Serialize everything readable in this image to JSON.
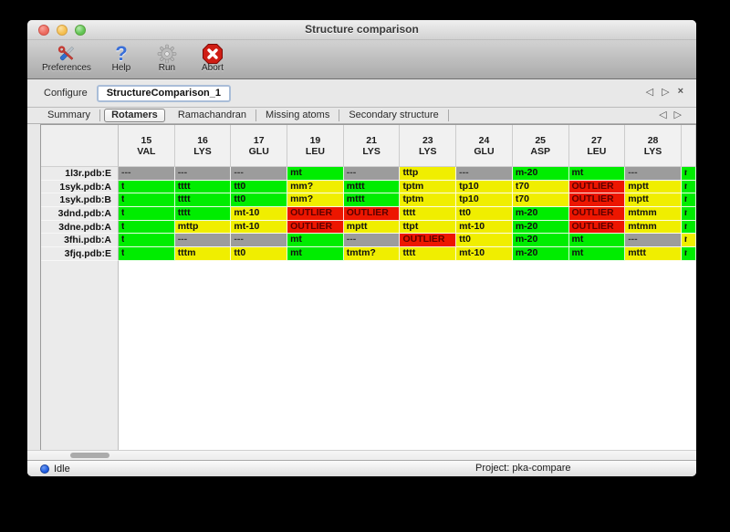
{
  "window": {
    "title": "Structure comparison"
  },
  "toolbar": {
    "items": [
      {
        "label": "Preferences",
        "icon": "tools-icon"
      },
      {
        "label": "Help",
        "icon": "help-icon"
      },
      {
        "label": "Run",
        "icon": "gear-icon"
      },
      {
        "label": "Abort",
        "icon": "abort-icon"
      }
    ]
  },
  "configure": {
    "label": "Configure",
    "value": "StructureComparison_1",
    "nav": {
      "prev": "◁",
      "next": "▷",
      "close": "×"
    }
  },
  "tabs": {
    "items": [
      "Summary",
      "Rotamers",
      "Ramachandran",
      "Missing atoms",
      "Secondary structure"
    ],
    "active": "Rotamers",
    "nav": {
      "prev": "◁",
      "next": "▷"
    }
  },
  "colors": {
    "green": "#00ed00",
    "yellow": "#f0ee00",
    "red": "#ed1600",
    "gray": "#9c9c9c"
  },
  "table": {
    "columns": [
      {
        "num": "15",
        "res": "VAL"
      },
      {
        "num": "16",
        "res": "LYS"
      },
      {
        "num": "17",
        "res": "GLU"
      },
      {
        "num": "19",
        "res": "LEU"
      },
      {
        "num": "21",
        "res": "LYS"
      },
      {
        "num": "23",
        "res": "LYS"
      },
      {
        "num": "24",
        "res": "GLU"
      },
      {
        "num": "25",
        "res": "ASP"
      },
      {
        "num": "27",
        "res": "LEU"
      },
      {
        "num": "28",
        "res": "LYS"
      }
    ],
    "rows": [
      {
        "label": "1l3r.pdb:E",
        "cells": [
          {
            "text": "---",
            "status": "gray"
          },
          {
            "text": "---",
            "status": "gray"
          },
          {
            "text": "---",
            "status": "gray"
          },
          {
            "text": "mt",
            "status": "green"
          },
          {
            "text": "---",
            "status": "gray"
          },
          {
            "text": "tttp",
            "status": "yellow"
          },
          {
            "text": "---",
            "status": "gray"
          },
          {
            "text": "m-20",
            "status": "green"
          },
          {
            "text": "mt",
            "status": "green"
          },
          {
            "text": "---",
            "status": "gray"
          }
        ],
        "overflow": {
          "text": "m",
          "status": "green",
          "clipped": true
        }
      },
      {
        "label": "1syk.pdb:A",
        "cells": [
          {
            "text": "t",
            "status": "green",
            "clipped": true
          },
          {
            "text": "tttt",
            "status": "green"
          },
          {
            "text": "tt0",
            "status": "green"
          },
          {
            "text": "mm?",
            "status": "yellow"
          },
          {
            "text": "mttt",
            "status": "green"
          },
          {
            "text": "tptm",
            "status": "yellow"
          },
          {
            "text": "tp10",
            "status": "yellow"
          },
          {
            "text": "t70",
            "status": "yellow"
          },
          {
            "text": "OUTLIER",
            "status": "red"
          },
          {
            "text": "mptt",
            "status": "yellow"
          }
        ],
        "overflow": {
          "text": "m",
          "status": "green",
          "clipped": true
        }
      },
      {
        "label": "1syk.pdb:B",
        "cells": [
          {
            "text": "t",
            "status": "green",
            "clipped": true
          },
          {
            "text": "tttt",
            "status": "green"
          },
          {
            "text": "tt0",
            "status": "green"
          },
          {
            "text": "mm?",
            "status": "yellow"
          },
          {
            "text": "mttt",
            "status": "green"
          },
          {
            "text": "tptm",
            "status": "yellow"
          },
          {
            "text": "tp10",
            "status": "yellow"
          },
          {
            "text": "t70",
            "status": "yellow"
          },
          {
            "text": "OUTLIER",
            "status": "red"
          },
          {
            "text": "mptt",
            "status": "yellow"
          }
        ],
        "overflow": {
          "text": "m",
          "status": "green",
          "clipped": true
        }
      },
      {
        "label": "3dnd.pdb:A",
        "cells": [
          {
            "text": "t",
            "status": "green",
            "clipped": true
          },
          {
            "text": "tttt",
            "status": "green"
          },
          {
            "text": "mt-10",
            "status": "yellow"
          },
          {
            "text": "OUTLIER",
            "status": "red"
          },
          {
            "text": "OUTLIER",
            "status": "red"
          },
          {
            "text": "tttt",
            "status": "yellow"
          },
          {
            "text": "tt0",
            "status": "yellow"
          },
          {
            "text": "m-20",
            "status": "green"
          },
          {
            "text": "OUTLIER",
            "status": "red"
          },
          {
            "text": "mtmm",
            "status": "yellow"
          }
        ],
        "overflow": {
          "text": "m",
          "status": "green",
          "clipped": true
        }
      },
      {
        "label": "3dne.pdb:A",
        "cells": [
          {
            "text": "t",
            "status": "green",
            "clipped": true
          },
          {
            "text": "mttp",
            "status": "yellow"
          },
          {
            "text": "mt-10",
            "status": "yellow"
          },
          {
            "text": "OUTLIER",
            "status": "red"
          },
          {
            "text": "mptt",
            "status": "yellow"
          },
          {
            "text": "ttpt",
            "status": "yellow"
          },
          {
            "text": "mt-10",
            "status": "yellow"
          },
          {
            "text": "m-20",
            "status": "green"
          },
          {
            "text": "OUTLIER",
            "status": "red"
          },
          {
            "text": "mtmm",
            "status": "yellow"
          }
        ],
        "overflow": {
          "text": "m",
          "status": "green",
          "clipped": true
        }
      },
      {
        "label": "3fhi.pdb:A",
        "cells": [
          {
            "text": "t",
            "status": "green",
            "clipped": true
          },
          {
            "text": "---",
            "status": "gray"
          },
          {
            "text": "---",
            "status": "gray"
          },
          {
            "text": "mt",
            "status": "green"
          },
          {
            "text": "---",
            "status": "gray"
          },
          {
            "text": "OUTLIER",
            "status": "red"
          },
          {
            "text": "tt0",
            "status": "yellow"
          },
          {
            "text": "m-20",
            "status": "green"
          },
          {
            "text": "mt",
            "status": "green"
          },
          {
            "text": "---",
            "status": "gray"
          }
        ],
        "overflow": {
          "text": "m",
          "status": "yellow",
          "clipped": true
        }
      },
      {
        "label": "3fjq.pdb:E",
        "cells": [
          {
            "text": "t",
            "status": "green",
            "clipped": true
          },
          {
            "text": "tttm",
            "status": "yellow"
          },
          {
            "text": "tt0",
            "status": "yellow"
          },
          {
            "text": "mt",
            "status": "green"
          },
          {
            "text": "tmtm?",
            "status": "yellow"
          },
          {
            "text": "tttt",
            "status": "yellow"
          },
          {
            "text": "mt-10",
            "status": "yellow"
          },
          {
            "text": "m-20",
            "status": "green"
          },
          {
            "text": "mt",
            "status": "green"
          },
          {
            "text": "mttt",
            "status": "yellow"
          }
        ],
        "overflow": {
          "text": "m",
          "status": "green",
          "clipped": true
        }
      }
    ]
  },
  "statusbar": {
    "status": "Idle",
    "project": "Project: pka-compare"
  }
}
